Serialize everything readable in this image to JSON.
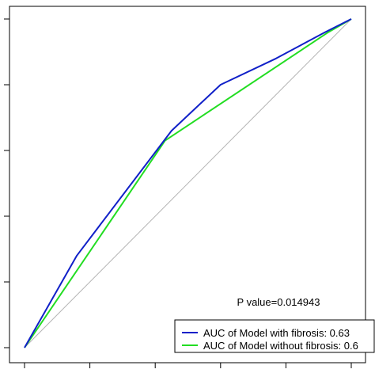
{
  "chart_data": {
    "type": "line",
    "title": "",
    "xlabel": "",
    "ylabel": "",
    "xlim": [
      0,
      1
    ],
    "ylim": [
      0,
      1
    ],
    "x_ticks": [
      0,
      0.2,
      0.4,
      0.6,
      0.8,
      1.0
    ],
    "y_ticks": [
      0,
      0.2,
      0.4,
      0.6,
      0.8,
      1.0
    ],
    "grid": false,
    "legend_position": "bottom-right",
    "annotation": "P value=0.014943",
    "reference_line": {
      "x": [
        0,
        1
      ],
      "y": [
        0,
        1
      ],
      "color": "#b3b3b3"
    },
    "series": [
      {
        "name": "AUC of Model with fibrosis: 0.63",
        "color": "#1020c8",
        "x": [
          0,
          0.16,
          0.45,
          0.6,
          0.77,
          0.92,
          1.0
        ],
        "y": [
          0,
          0.28,
          0.66,
          0.8,
          0.88,
          0.96,
          1.0
        ]
      },
      {
        "name": "AUC of Model without fibrosis: 0.6",
        "color": "#22dd22",
        "x": [
          0,
          0.43,
          0.93,
          1.0
        ],
        "y": [
          0,
          0.63,
          0.96,
          1.0
        ]
      }
    ]
  }
}
